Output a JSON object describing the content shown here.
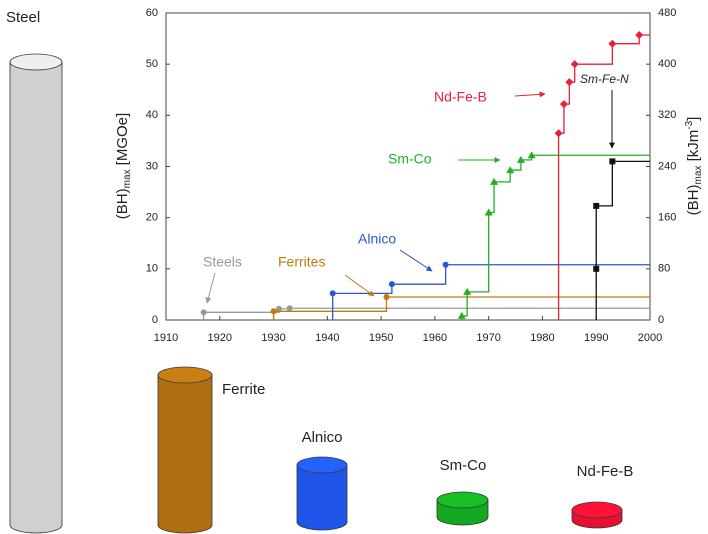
{
  "chart_data": {
    "type": "step",
    "y_label": {
      "main": "(BH)",
      "sub": "max",
      "unit": " [MGOe]"
    },
    "y2_label": {
      "main": "(BH)",
      "sub": "max",
      "unit": " [kJm",
      "sup": "-3",
      "close": "]"
    },
    "xlim": [
      1910,
      2000
    ],
    "xticks": [
      1910,
      1920,
      1930,
      1940,
      1950,
      1960,
      1970,
      1980,
      1990,
      2000
    ],
    "ylim": [
      0,
      60
    ],
    "yticks": [
      0,
      10,
      20,
      30,
      40,
      50,
      60
    ],
    "y2lim": [
      0,
      480
    ],
    "y2ticks": [
      0,
      80,
      160,
      240,
      320,
      400,
      480
    ],
    "series": [
      {
        "name": "Steels",
        "color": "#999999",
        "marker": "circle",
        "x": [
          1917,
          1931,
          1933
        ],
        "values": [
          1.5,
          2.2,
          2.3
        ]
      },
      {
        "name": "Ferrites",
        "color": "#c07a10",
        "marker": "circle",
        "x": [
          1930,
          1951
        ],
        "values": [
          1.7,
          4.5
        ]
      },
      {
        "name": "Alnico",
        "color": "#2a55d8",
        "marker": "circle",
        "x": [
          1941,
          1952,
          1962
        ],
        "values": [
          5.2,
          7,
          10.8
        ]
      },
      {
        "name": "Sm-Co",
        "color": "#22b020",
        "marker": "triangle",
        "x": [
          1965,
          1966,
          1970,
          1971,
          1974,
          1976,
          1978
        ],
        "values": [
          0.8,
          5.5,
          21,
          27,
          29.3,
          31.3,
          32.2
        ]
      },
      {
        "name": "Nd-Fe-B",
        "color": "#e8203a",
        "marker": "diamond",
        "x": [
          1983,
          1984,
          1985,
          1986,
          1993,
          1998
        ],
        "values": [
          36.5,
          42.2,
          46.5,
          50,
          54,
          55.7
        ]
      },
      {
        "name": "Sm-Fe-N",
        "color": "#111111",
        "marker": "square",
        "x": [
          1990,
          1990,
          1993
        ],
        "values": [
          10,
          22.3,
          31
        ]
      }
    ]
  },
  "cylinders": [
    {
      "label": "Steel",
      "color": "#d0d0d0"
    },
    {
      "label": "Ferrite",
      "color": "#b06e12"
    },
    {
      "label": "Alnico",
      "color": "#1f55e8"
    },
    {
      "label": "Sm-Co",
      "color": "#14a820"
    },
    {
      "label": "Nd-Fe-B",
      "color": "#e81030"
    }
  ]
}
